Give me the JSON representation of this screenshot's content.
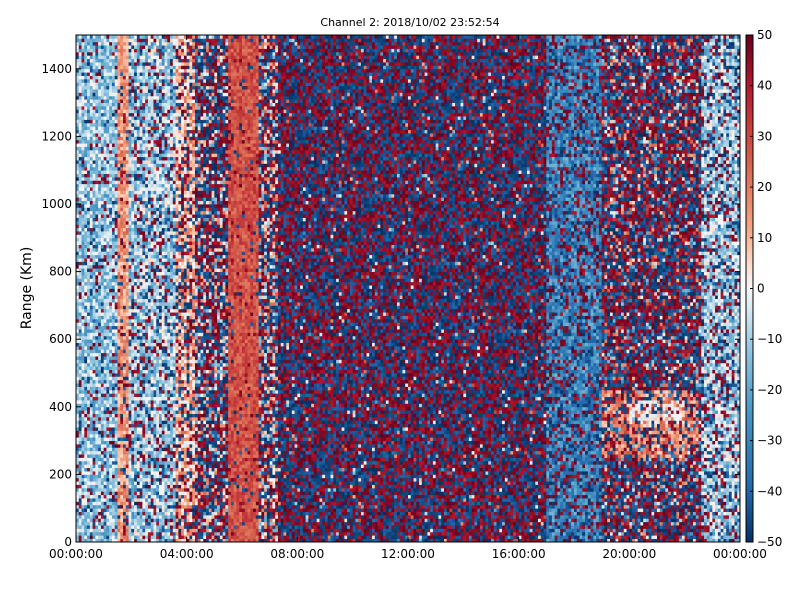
{
  "chart_data": {
    "type": "heatmap",
    "title": "Channel 2: 2018/10/02 23:52:54",
    "xlabel": "",
    "ylabel": "Range (Km)",
    "x_ticks": [
      "00:00:00",
      "04:00:00",
      "08:00:00",
      "12:00:00",
      "16:00:00",
      "20:00:00",
      "00:00:00"
    ],
    "x_range_hours": [
      0,
      24
    ],
    "y_ticks": [
      0,
      200,
      400,
      600,
      800,
      1000,
      1200,
      1400
    ],
    "ylim": [
      0,
      1500
    ],
    "colorbar": {
      "ticks": [
        50,
        40,
        30,
        20,
        10,
        0,
        -10,
        -20,
        -30,
        -40,
        -50
      ],
      "range": [
        -50,
        50
      ],
      "colormap": "RdBu_r",
      "low_color": "#053061",
      "mid_color": "#f7f7f7",
      "high_color": "#67001f"
    },
    "bands": [
      {
        "h0": 0.0,
        "h1": 1.5,
        "mean": -12,
        "spread": 14,
        "noise": 0.18
      },
      {
        "h0": 1.5,
        "h1": 1.9,
        "mean": 15,
        "spread": 10,
        "noise": 0.15
      },
      {
        "h0": 1.9,
        "h1": 3.6,
        "mean": -10,
        "spread": 16,
        "noise": 0.25
      },
      {
        "h0": 3.6,
        "h1": 4.3,
        "mean": 10,
        "spread": 14,
        "noise": 0.35
      },
      {
        "h0": 4.3,
        "h1": 5.5,
        "mean": 0,
        "spread": 25,
        "noise": 0.7
      },
      {
        "h0": 5.5,
        "h1": 6.6,
        "mean": 28,
        "spread": 8,
        "noise": 0.1
      },
      {
        "h0": 6.6,
        "h1": 7.3,
        "mean": 5,
        "spread": 25,
        "noise": 0.6
      },
      {
        "h0": 7.3,
        "h1": 17.0,
        "mean": 0,
        "spread": 50,
        "noise": 0.92
      },
      {
        "h0": 17.0,
        "h1": 19.0,
        "mean": -28,
        "spread": 12,
        "noise": 0.4
      },
      {
        "h0": 19.0,
        "h1": 22.6,
        "mean": 5,
        "spread": 40,
        "noise": 0.75
      },
      {
        "h0": 22.6,
        "h1": 24.0,
        "mean": -10,
        "spread": 15,
        "noise": 0.3
      }
    ]
  }
}
